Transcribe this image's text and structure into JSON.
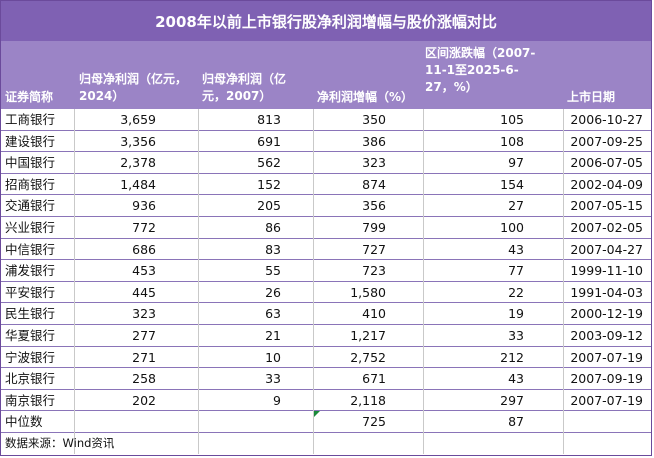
{
  "title": "2008年以前上市银行股净利润增幅与股价涨幅对比",
  "headers": {
    "name": "证券简称",
    "profit2024": "归母净利润（亿元，2024）",
    "profit2007": "归母净利润（亿元，2007）",
    "growth": "净利润增幅（%）",
    "price": "区间涨跌幅（2007-11-1至2025-6-27，%）",
    "ipo": "上市日期"
  },
  "rows": [
    {
      "name": "工商银行",
      "p2024": "3,659",
      "p2007": "813",
      "growth": "350",
      "price": "105",
      "ipo": "2006-10-27"
    },
    {
      "name": "建设银行",
      "p2024": "3,356",
      "p2007": "691",
      "growth": "386",
      "price": "108",
      "ipo": "2007-09-25"
    },
    {
      "name": "中国银行",
      "p2024": "2,378",
      "p2007": "562",
      "growth": "323",
      "price": "97",
      "ipo": "2006-07-05"
    },
    {
      "name": "招商银行",
      "p2024": "1,484",
      "p2007": "152",
      "growth": "874",
      "price": "154",
      "ipo": "2002-04-09"
    },
    {
      "name": "交通银行",
      "p2024": "936",
      "p2007": "205",
      "growth": "356",
      "price": "27",
      "ipo": "2007-05-15"
    },
    {
      "name": "兴业银行",
      "p2024": "772",
      "p2007": "86",
      "growth": "799",
      "price": "100",
      "ipo": "2007-02-05"
    },
    {
      "name": "中信银行",
      "p2024": "686",
      "p2007": "83",
      "growth": "727",
      "price": "43",
      "ipo": "2007-04-27"
    },
    {
      "name": "浦发银行",
      "p2024": "453",
      "p2007": "55",
      "growth": "723",
      "price": "77",
      "ipo": "1999-11-10"
    },
    {
      "name": "平安银行",
      "p2024": "445",
      "p2007": "26",
      "growth": "1,580",
      "price": "22",
      "ipo": "1991-04-03"
    },
    {
      "name": "民生银行",
      "p2024": "323",
      "p2007": "63",
      "growth": "410",
      "price": "19",
      "ipo": "2000-12-19"
    },
    {
      "name": "华夏银行",
      "p2024": "277",
      "p2007": "21",
      "growth": "1,217",
      "price": "33",
      "ipo": "2003-09-12"
    },
    {
      "name": "宁波银行",
      "p2024": "271",
      "p2007": "10",
      "growth": "2,752",
      "price": "212",
      "ipo": "2007-07-19"
    },
    {
      "name": "北京银行",
      "p2024": "258",
      "p2007": "33",
      "growth": "671",
      "price": "43",
      "ipo": "2007-09-19"
    },
    {
      "name": "南京银行",
      "p2024": "202",
      "p2007": "9",
      "growth": "2,118",
      "price": "297",
      "ipo": "2007-07-19"
    },
    {
      "name": "中位数",
      "p2024": "",
      "p2007": "",
      "growth": "725",
      "price": "87",
      "ipo": ""
    }
  ],
  "source": "数据来源：Wind资讯",
  "colors": {
    "title_bg": "#7f61b3",
    "header_bg": "#9b84c6",
    "row_line": "#8a74b8"
  }
}
